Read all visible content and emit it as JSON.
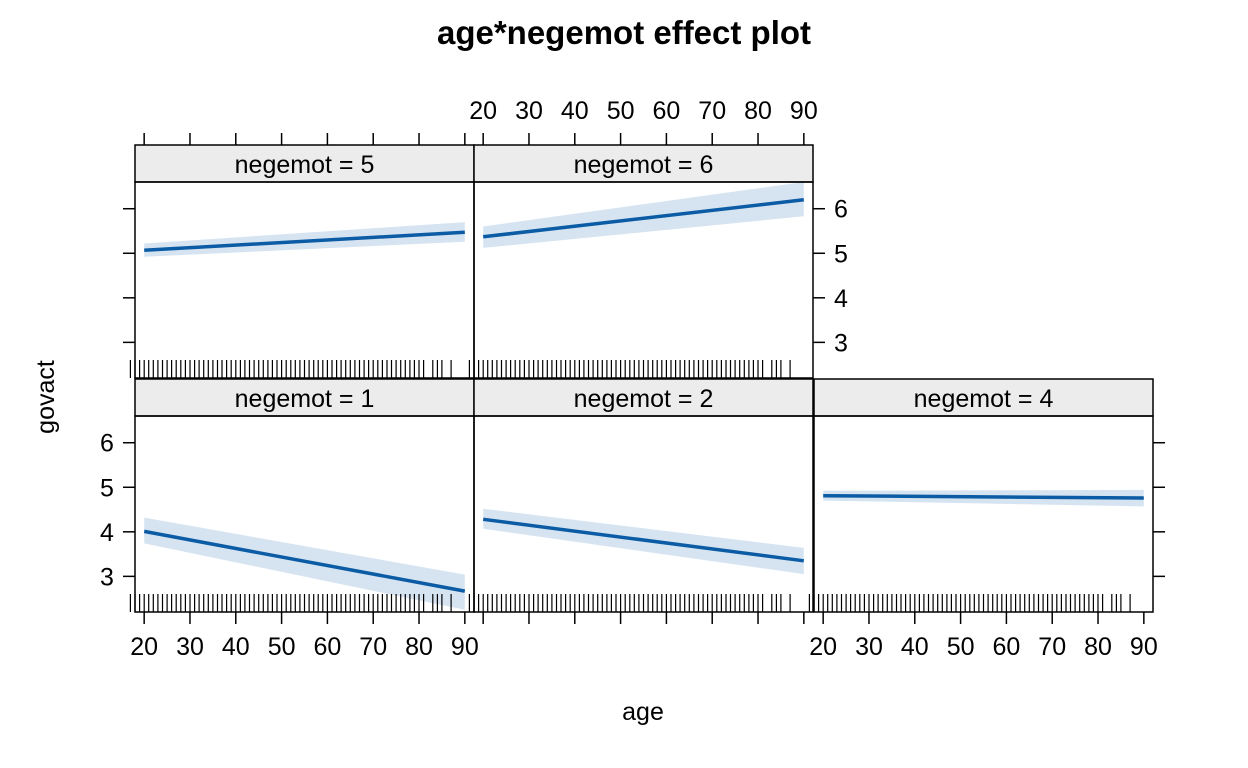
{
  "chart_data": {
    "type": "line",
    "title": "age*negemot effect plot",
    "xlabel": "age",
    "ylabel": "govact",
    "xlim": [
      18,
      92
    ],
    "ylim": [
      2.2,
      6.6
    ],
    "x_ticks": [
      20,
      30,
      40,
      50,
      60,
      70,
      80,
      90
    ],
    "y_ticks": [
      3,
      4,
      5,
      6
    ],
    "grid": false,
    "colors": {
      "line": "#0b5ca4",
      "band": "#d6e4f2",
      "strip": "#ececec",
      "frame": "#000000"
    },
    "panels": [
      {
        "strip": "negemot = 5",
        "negemot": 5,
        "x": [
          20,
          90
        ],
        "fit": [
          5.07,
          5.47
        ],
        "lower": [
          4.92,
          5.26
        ],
        "upper": [
          5.22,
          5.7
        ]
      },
      {
        "strip": "negemot = 6",
        "negemot": 6,
        "x": [
          20,
          90
        ],
        "fit": [
          5.37,
          6.2
        ],
        "lower": [
          5.12,
          5.83
        ],
        "upper": [
          5.6,
          6.6
        ]
      },
      {
        "strip": "negemot = 1",
        "negemot": 1,
        "x": [
          20,
          90
        ],
        "fit": [
          4.01,
          2.67
        ],
        "lower": [
          3.74,
          2.25
        ],
        "upper": [
          4.32,
          3.04
        ]
      },
      {
        "strip": "negemot = 2",
        "negemot": 2,
        "x": [
          20,
          90
        ],
        "fit": [
          4.28,
          3.35
        ],
        "lower": [
          4.07,
          3.05
        ],
        "upper": [
          4.52,
          3.64
        ]
      },
      {
        "strip": "negemot = 4",
        "negemot": 4,
        "x": [
          20,
          90
        ],
        "fit": [
          4.81,
          4.76
        ],
        "lower": [
          4.7,
          4.57
        ],
        "upper": [
          4.92,
          4.94
        ]
      }
    ],
    "rug_ages": [
      17,
      18,
      19,
      20,
      21,
      22,
      23,
      24,
      25,
      26,
      27,
      28,
      29,
      30,
      31,
      32,
      33,
      34,
      35,
      36,
      37,
      38,
      39,
      40,
      41,
      42,
      43,
      44,
      45,
      46,
      47,
      48,
      49,
      50,
      51,
      52,
      53,
      54,
      55,
      56,
      57,
      58,
      59,
      60,
      61,
      62,
      63,
      64,
      65,
      66,
      67,
      68,
      69,
      70,
      71,
      72,
      73,
      74,
      75,
      76,
      77,
      78,
      79,
      80,
      81,
      83,
      84,
      85,
      87
    ]
  }
}
